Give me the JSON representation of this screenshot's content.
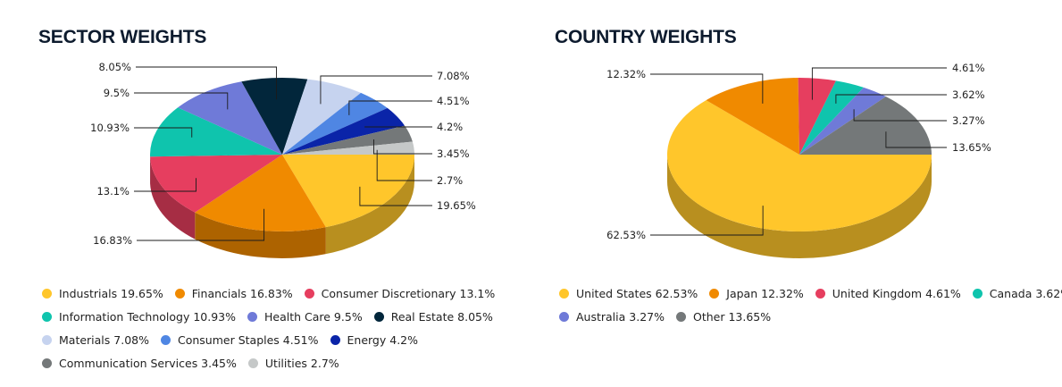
{
  "chart_data": [
    {
      "type": "pie",
      "title": "SECTOR WEIGHTS",
      "slices": [
        {
          "label": "Industrials",
          "value": 19.65,
          "value_text": "19.65%",
          "color": "#ffc62b"
        },
        {
          "label": "Financials",
          "value": 16.83,
          "value_text": "16.83%",
          "color": "#f08a00"
        },
        {
          "label": "Consumer Discretionary",
          "value": 13.1,
          "value_text": "13.1%",
          "color": "#e63e5f"
        },
        {
          "label": "Information Technology",
          "value": 10.93,
          "value_text": "10.93%",
          "color": "#0fc4ad"
        },
        {
          "label": "Health Care",
          "value": 9.5,
          "value_text": "9.5%",
          "color": "#6f7ad8"
        },
        {
          "label": "Real Estate",
          "value": 8.05,
          "value_text": "8.05%",
          "color": "#02263b"
        },
        {
          "label": "Materials",
          "value": 7.08,
          "value_text": "7.08%",
          "color": "#c6d3ef"
        },
        {
          "label": "Consumer Staples",
          "value": 4.51,
          "value_text": "4.51%",
          "color": "#4f86e3"
        },
        {
          "label": "Energy",
          "value": 4.2,
          "value_text": "4.2%",
          "color": "#0a24a8"
        },
        {
          "label": "Communication Services",
          "value": 3.45,
          "value_text": "3.45%",
          "color": "#747879"
        },
        {
          "label": "Utilities",
          "value": 2.7,
          "value_text": "2.7%",
          "color": "#c5c8c8"
        }
      ],
      "legend": "bottom"
    },
    {
      "type": "pie",
      "title": "COUNTRY WEIGHTS",
      "slices": [
        {
          "label": "United States",
          "value": 62.53,
          "value_text": "62.53%",
          "color": "#ffc62b"
        },
        {
          "label": "Japan",
          "value": 12.32,
          "value_text": "12.32%",
          "color": "#f08a00"
        },
        {
          "label": "United Kingdom",
          "value": 4.61,
          "value_text": "4.61%",
          "color": "#e63e5f"
        },
        {
          "label": "Canada",
          "value": 3.62,
          "value_text": "3.62%",
          "color": "#0fc4ad"
        },
        {
          "label": "Australia",
          "value": 3.27,
          "value_text": "3.27%",
          "color": "#6f7ad8"
        },
        {
          "label": "Other",
          "value": 13.65,
          "value_text": "13.65%",
          "color": "#747879"
        }
      ],
      "legend": "bottom"
    }
  ]
}
